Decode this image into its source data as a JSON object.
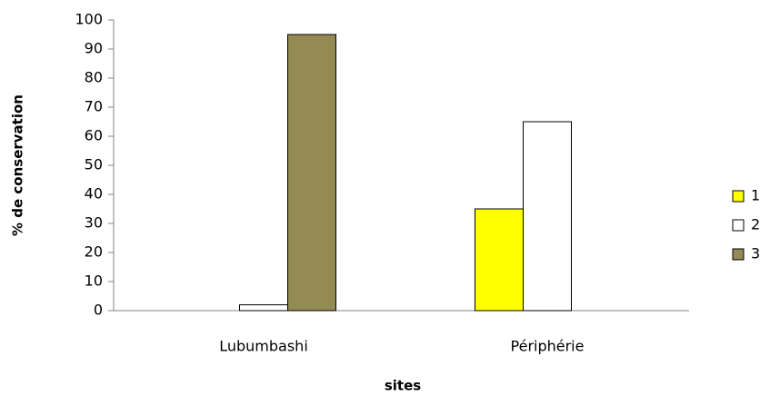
{
  "chart_data": {
    "type": "bar",
    "x_label": "sites",
    "y_label": "% de conservation",
    "categories": [
      "Lubumbashi",
      "Périphérie"
    ],
    "series": [
      {
        "name": "1",
        "color": "#ffff00",
        "values": [
          0,
          35
        ]
      },
      {
        "name": "2",
        "color": "#ffffff",
        "values": [
          2,
          65
        ]
      },
      {
        "name": "3",
        "color": "#948a54",
        "values": [
          95,
          0
        ]
      }
    ],
    "ylim": [
      0,
      100
    ],
    "yticks": [
      0,
      10,
      20,
      30,
      40,
      50,
      60,
      70,
      80,
      90,
      100
    ],
    "grid": false,
    "legend": "right"
  }
}
